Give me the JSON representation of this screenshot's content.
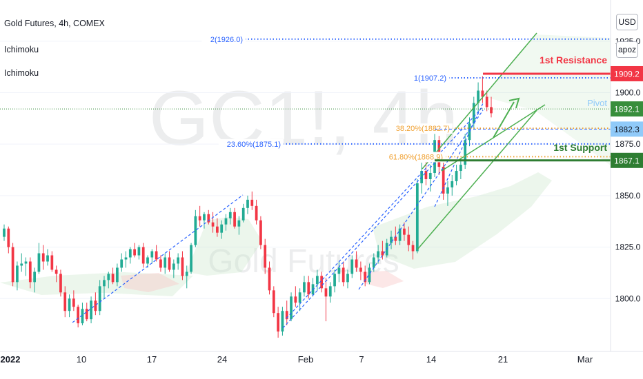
{
  "legend": {
    "symbol_line": "Gold Futures, 4h, COMEX",
    "indicator_1": "Ichimoku",
    "indicator_2": "Ichimoku"
  },
  "watermark": {
    "big": "GC1!, 4h",
    "small": "Gold Futures"
  },
  "controls": {
    "currency": "USD",
    "scale_mode": "apoz"
  },
  "colors": {
    "up": "#22ab94",
    "down": "#f23645",
    "channel": "#4caf50",
    "resistance": "#f23645",
    "support": "#2e7d32",
    "pivot": "#388e3c",
    "fib_blue": "#2962ff",
    "fib_gold": "#f0a030",
    "cloud": "#c8e6c9"
  },
  "chart_data": {
    "type": "candlestick",
    "title": "Gold Futures, 4h, COMEX",
    "ylim": [
      1775,
      1945
    ],
    "y_ticks": [
      "1800.0",
      "1825.0",
      "1850.0",
      "1875.0",
      "1900.0",
      "1925.0"
    ],
    "x_ticks": [
      "2022",
      "10",
      "17",
      "24",
      "Feb",
      "7",
      "14",
      "21",
      "Mar"
    ],
    "price_levels": [
      {
        "label": "1st Resistance",
        "value": 1909.2,
        "badge": "1909.2"
      },
      {
        "label": "Pivot",
        "value": 1892.1,
        "badge": "1892.1"
      },
      {
        "label": "",
        "value": 1882.3,
        "badge": "1882.3"
      },
      {
        "label": "1st Support",
        "value": 1867.1,
        "badge": "1867.1"
      }
    ],
    "fib_labels": [
      {
        "text": "2(1926.0)",
        "value": 1926.0
      },
      {
        "text": "1(1907.2)",
        "value": 1907.2
      },
      {
        "text": "38.20%(1882.7)",
        "value": 1882.7
      },
      {
        "text": "23.60%(1875.1)",
        "value": 1875.1
      },
      {
        "text": "61.80%(1868.9)",
        "value": 1868.9
      }
    ],
    "candles": [
      [
        1830,
        1836,
        1828,
        1834
      ],
      [
        1834,
        1835,
        1822,
        1825
      ],
      [
        1825,
        1827,
        1806,
        1808
      ],
      [
        1808,
        1818,
        1804,
        1816
      ],
      [
        1816,
        1822,
        1813,
        1817
      ],
      [
        1817,
        1820,
        1811,
        1818
      ],
      [
        1818,
        1820,
        1805,
        1808
      ],
      [
        1808,
        1815,
        1803,
        1813
      ],
      [
        1813,
        1827,
        1812,
        1822
      ],
      [
        1822,
        1826,
        1814,
        1818
      ],
      [
        1818,
        1824,
        1816,
        1821
      ],
      [
        1821,
        1823,
        1813,
        1814
      ],
      [
        1814,
        1816,
        1808,
        1812
      ],
      [
        1812,
        1814,
        1801,
        1803
      ],
      [
        1803,
        1806,
        1791,
        1794
      ],
      [
        1794,
        1802,
        1791,
        1800
      ],
      [
        1800,
        1804,
        1794,
        1796
      ],
      [
        1796,
        1797,
        1786,
        1788
      ],
      [
        1788,
        1798,
        1787,
        1795
      ],
      [
        1795,
        1798,
        1789,
        1790
      ],
      [
        1790,
        1801,
        1788,
        1799
      ],
      [
        1799,
        1803,
        1792,
        1794
      ],
      [
        1794,
        1809,
        1792,
        1806
      ],
      [
        1806,
        1811,
        1800,
        1809
      ],
      [
        1809,
        1813,
        1805,
        1812
      ],
      [
        1812,
        1815,
        1807,
        1808
      ],
      [
        1808,
        1817,
        1806,
        1815
      ],
      [
        1815,
        1822,
        1813,
        1819
      ],
      [
        1819,
        1823,
        1815,
        1820
      ],
      [
        1820,
        1825,
        1817,
        1824
      ],
      [
        1824,
        1827,
        1820,
        1821
      ],
      [
        1821,
        1826,
        1819,
        1825
      ],
      [
        1825,
        1827,
        1815,
        1817
      ],
      [
        1817,
        1821,
        1815,
        1820
      ],
      [
        1820,
        1824,
        1817,
        1823
      ],
      [
        1823,
        1826,
        1818,
        1819
      ],
      [
        1819,
        1821,
        1813,
        1815
      ],
      [
        1815,
        1822,
        1812,
        1820
      ],
      [
        1820,
        1823,
        1813,
        1814
      ],
      [
        1814,
        1819,
        1810,
        1817
      ],
      [
        1817,
        1822,
        1814,
        1820
      ],
      [
        1820,
        1823,
        1809,
        1811
      ],
      [
        1811,
        1816,
        1805,
        1813
      ],
      [
        1813,
        1827,
        1812,
        1826
      ],
      [
        1826,
        1843,
        1825,
        1840
      ],
      [
        1840,
        1845,
        1835,
        1838
      ],
      [
        1838,
        1842,
        1834,
        1841
      ],
      [
        1841,
        1843,
        1836,
        1837
      ],
      [
        1837,
        1842,
        1832,
        1835
      ],
      [
        1835,
        1839,
        1830,
        1832
      ],
      [
        1832,
        1838,
        1829,
        1836
      ],
      [
        1836,
        1841,
        1833,
        1839
      ],
      [
        1839,
        1844,
        1836,
        1842
      ],
      [
        1842,
        1844,
        1834,
        1835
      ],
      [
        1835,
        1840,
        1831,
        1838
      ],
      [
        1838,
        1846,
        1837,
        1844
      ],
      [
        1844,
        1850,
        1841,
        1848
      ],
      [
        1848,
        1852,
        1843,
        1845
      ],
      [
        1845,
        1848,
        1836,
        1838
      ],
      [
        1838,
        1840,
        1824,
        1826
      ],
      [
        1826,
        1829,
        1812,
        1815
      ],
      [
        1815,
        1818,
        1802,
        1804
      ],
      [
        1804,
        1806,
        1791,
        1793
      ],
      [
        1793,
        1796,
        1781,
        1784
      ],
      [
        1784,
        1796,
        1782,
        1794
      ],
      [
        1794,
        1799,
        1787,
        1790
      ],
      [
        1790,
        1803,
        1789,
        1801
      ],
      [
        1801,
        1806,
        1796,
        1798
      ],
      [
        1798,
        1805,
        1794,
        1803
      ],
      [
        1803,
        1811,
        1801,
        1808
      ],
      [
        1808,
        1811,
        1800,
        1802
      ],
      [
        1802,
        1810,
        1801,
        1807
      ],
      [
        1807,
        1814,
        1804,
        1811
      ],
      [
        1811,
        1813,
        1803,
        1805
      ],
      [
        1805,
        1810,
        1789,
        1801
      ],
      [
        1801,
        1808,
        1798,
        1806
      ],
      [
        1806,
        1814,
        1803,
        1812
      ],
      [
        1812,
        1818,
        1808,
        1815
      ],
      [
        1815,
        1818,
        1806,
        1808
      ],
      [
        1808,
        1814,
        1805,
        1812
      ],
      [
        1812,
        1821,
        1810,
        1819
      ],
      [
        1819,
        1823,
        1813,
        1815
      ],
      [
        1815,
        1818,
        1809,
        1813
      ],
      [
        1813,
        1816,
        1806,
        1808
      ],
      [
        1808,
        1817,
        1807,
        1815
      ],
      [
        1815,
        1822,
        1813,
        1820
      ],
      [
        1820,
        1826,
        1817,
        1823
      ],
      [
        1823,
        1828,
        1819,
        1821
      ],
      [
        1821,
        1829,
        1820,
        1827
      ],
      [
        1827,
        1833,
        1824,
        1830
      ],
      [
        1830,
        1835,
        1826,
        1828
      ],
      [
        1828,
        1836,
        1826,
        1834
      ],
      [
        1834,
        1837,
        1828,
        1831
      ],
      [
        1831,
        1835,
        1823,
        1826
      ],
      [
        1826,
        1828,
        1819,
        1823
      ],
      [
        1823,
        1858,
        1822,
        1856
      ],
      [
        1856,
        1866,
        1851,
        1862
      ],
      [
        1862,
        1867,
        1855,
        1858
      ],
      [
        1858,
        1865,
        1852,
        1861
      ],
      [
        1861,
        1880,
        1859,
        1877
      ],
      [
        1877,
        1879,
        1860,
        1864
      ],
      [
        1864,
        1866,
        1848,
        1851
      ],
      [
        1851,
        1857,
        1845,
        1854
      ],
      [
        1854,
        1860,
        1850,
        1857
      ],
      [
        1857,
        1865,
        1855,
        1862
      ],
      [
        1862,
        1868,
        1858,
        1865
      ],
      [
        1865,
        1880,
        1863,
        1877
      ],
      [
        1877,
        1888,
        1874,
        1885
      ],
      [
        1885,
        1898,
        1882,
        1895
      ],
      [
        1895,
        1905,
        1890,
        1901
      ],
      [
        1901,
        1908,
        1895,
        1898
      ],
      [
        1898,
        1901,
        1891,
        1893
      ],
      [
        1893,
        1898,
        1888,
        1890
      ]
    ]
  }
}
